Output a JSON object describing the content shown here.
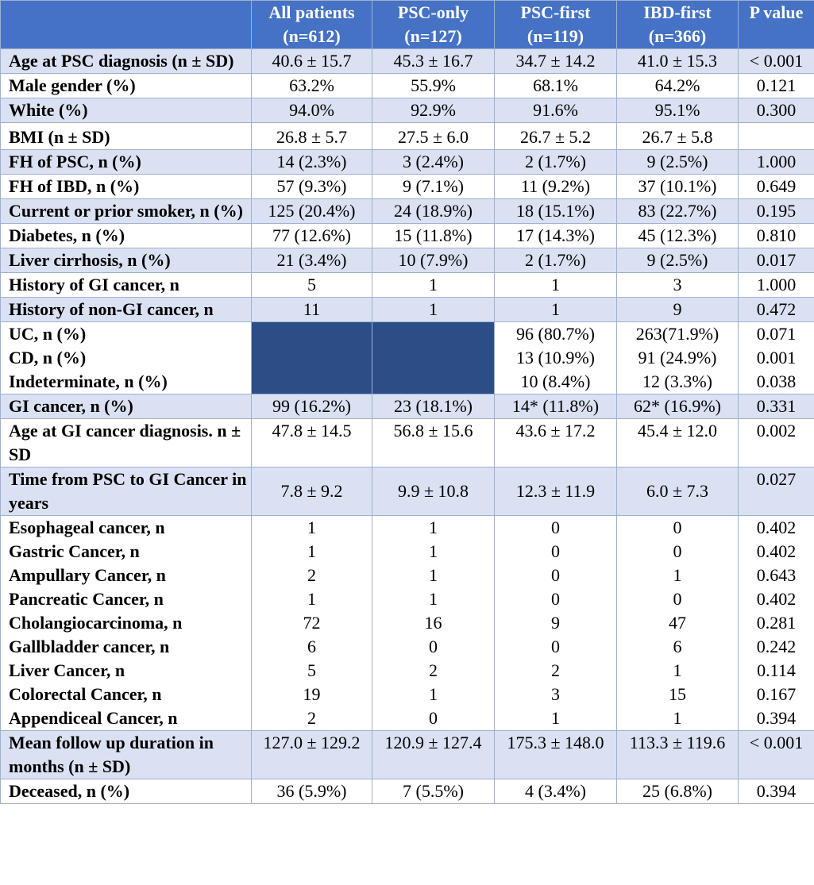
{
  "header": {
    "col0": "",
    "all": [
      "All patients",
      "(n=612)"
    ],
    "psc_only": [
      "PSC-only",
      "(n=127)"
    ],
    "psc_first": [
      "PSC-first",
      "(n=119)"
    ],
    "ibd_first": [
      "IBD-first",
      "(n=366)"
    ],
    "pvalue": "P value"
  },
  "rows": [
    {
      "label": "Age at PSC diagnosis (n ± SD)",
      "all": "40.6 ± 15.7",
      "psc_only": "45.3 ± 16.7",
      "psc_first": "34.7 ± 14.2",
      "ibd_first": "41.0 ± 15.3",
      "p": "< 0.001"
    },
    {
      "label": "Male gender (%)",
      "all": "63.2%",
      "psc_only": "55.9%",
      "psc_first": "68.1%",
      "ibd_first": "64.2%",
      "p": "0.121"
    },
    {
      "label": "White (%)",
      "all": "94.0%",
      "psc_only": "92.9%",
      "psc_first": "91.6%",
      "ibd_first": "95.1%",
      "p": "0.300"
    },
    {
      "label": "BMI (n ± SD)",
      "all": "26.8 ± 5.7",
      "psc_only": "27.5 ± 6.0",
      "psc_first": "26.7 ± 5.2",
      "ibd_first": "26.7 ± 5.8",
      "p": ""
    },
    {
      "label": "FH of PSC, n (%)",
      "all": "14 (2.3%)",
      "psc_only": "3 (2.4%)",
      "psc_first": "2 (1.7%)",
      "ibd_first": "9 (2.5%)",
      "p": "1.000"
    },
    {
      "label": "FH of IBD, n (%)",
      "all": "57 (9.3%)",
      "psc_only": "9 (7.1%)",
      "psc_first": "11 (9.2%)",
      "ibd_first": "37 (10.1%)",
      "p": "0.649"
    },
    {
      "label": "Current or prior smoker, n (%)",
      "all": "125 (20.4%)",
      "psc_only": "24 (18.9%)",
      "psc_first": "18 (15.1%)",
      "ibd_first": "83 (22.7%)",
      "p": "0.195"
    },
    {
      "label": "Diabetes, n (%)",
      "all": "77 (12.6%)",
      "psc_only": "15 (11.8%)",
      "psc_first": "17 (14.3%)",
      "ibd_first": "45 (12.3%)",
      "p": "0.810"
    },
    {
      "label": "Liver cirrhosis, n (%)",
      "all": "21 (3.4%)",
      "psc_only": "10 (7.9%)",
      "psc_first": "2 (1.7%)",
      "ibd_first": "9 (2.5%)",
      "p": "0.017"
    },
    {
      "label": "History of GI cancer, n",
      "all": "5",
      "psc_only": "1",
      "psc_first": "1",
      "ibd_first": "3",
      "p": "1.000"
    },
    {
      "label": "History of non-GI cancer, n",
      "all": "11",
      "psc_only": "1",
      "psc_first": "1",
      "ibd_first": "9",
      "p": "0.472"
    }
  ],
  "ibd_group": {
    "labels": [
      "UC, n (%)",
      "CD, n (%)",
      "Indeterminate, n (%)"
    ],
    "psc_first": [
      "96 (80.7%)",
      "13 (10.9%)",
      "10 (8.4%)"
    ],
    "ibd_first": [
      "263(71.9%)",
      "91 (24.9%)",
      "12 (3.3%)"
    ],
    "p": [
      "0.071",
      "0.001",
      "0.038"
    ]
  },
  "rows2": [
    {
      "label": "GI cancer, n (%)",
      "all": "99 (16.2%)",
      "psc_only": "23 (18.1%)",
      "psc_first": "14* (11.8%)",
      "ibd_first": "62* (16.9%)",
      "p": "0.331"
    },
    {
      "label": "Age at GI cancer diagnosis. n ± SD",
      "all": "47.8 ± 14.5",
      "psc_only": "56.8 ± 15.6",
      "psc_first": "43.6 ± 17.2",
      "ibd_first": "45.4 ± 12.0",
      "p": "0.002"
    },
    {
      "label": "Time from PSC to GI Cancer in years",
      "all": "7.8 ± 9.2",
      "psc_only": "9.9 ± 10.8",
      "psc_first": "12.3 ± 11.9",
      "ibd_first": "6.0 ± 7.3",
      "p": "0.027"
    }
  ],
  "cancer_group": {
    "labels": [
      "Esophageal cancer, n",
      "Gastric Cancer, n",
      "Ampullary Cancer, n",
      "Pancreatic Cancer, n",
      "Cholangiocarcinoma, n",
      "Gallbladder cancer, n",
      "Liver Cancer, n",
      "Colorectal Cancer, n",
      "Appendiceal Cancer, n"
    ],
    "all": [
      "1",
      "1",
      "2",
      "1",
      "72",
      "6",
      "5",
      "19",
      "2"
    ],
    "psc_only": [
      "1",
      "1",
      "1",
      "1",
      "16",
      "0",
      "2",
      "1",
      "0"
    ],
    "psc_first": [
      "0",
      "0",
      "0",
      "0",
      "9",
      "0",
      "2",
      "3",
      "1"
    ],
    "ibd_first": [
      "0",
      "0",
      "1",
      "0",
      "47",
      "6",
      "1",
      "15",
      "1"
    ],
    "p": [
      "0.402",
      "0.402",
      "0.643",
      "0.402",
      "0.281",
      "0.242",
      "0.114",
      "0.167",
      "0.394"
    ]
  },
  "rows3": [
    {
      "label": "Mean follow up duration in months (n ± SD)",
      "all": "127.0 ± 129.2",
      "psc_only": "120.9 ± 127.4",
      "psc_first": "175.3 ± 148.0",
      "ibd_first": "113.3 ± 119.6",
      "p": "< 0.001"
    },
    {
      "label": "Deceased, n (%)",
      "all": "36 (5.9%)",
      "psc_only": "7 (5.5%)",
      "psc_first": "4 (3.4%)",
      "ibd_first": "25 (6.8%)",
      "p": "0.394"
    }
  ]
}
